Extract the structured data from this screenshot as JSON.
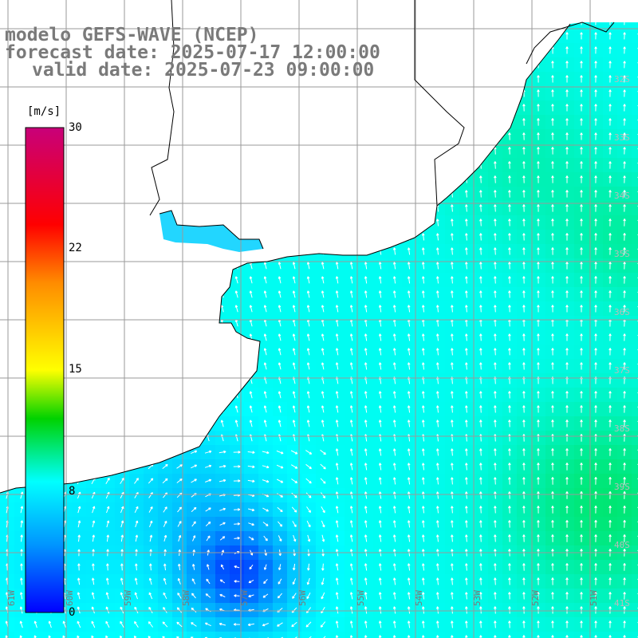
{
  "titles": {
    "line1": "modelo GEFS-WAVE (NCEP)",
    "line2": "forecast date: 2025-07-17 12:00:00",
    "line3": "valid date: 2025-07-23 09:00:00"
  },
  "colorbar": {
    "unit": "[m/s]",
    "min": 0,
    "max": 30,
    "ticks": [
      "30",
      "22",
      "15",
      "8",
      "0"
    ],
    "tick_values": [
      30,
      22,
      15,
      8,
      0
    ],
    "colors": [
      "#0000ff",
      "#00c8ff",
      "#00ffff",
      "#00d200",
      "#ffff00",
      "#ff8c00",
      "#ff0000",
      "#c8007a"
    ]
  },
  "map": {
    "field": "wind speed",
    "land_color": "#ffffff",
    "grid_color": "#a0a0a0",
    "lon_labels": [
      "61W",
      "60W",
      "59W",
      "58W",
      "57W",
      "56W",
      "55W",
      "54W",
      "53W",
      "52W",
      "51W"
    ],
    "lat_labels": [
      "32S",
      "33S",
      "34S",
      "35S",
      "36S",
      "37S",
      "38S",
      "39S",
      "40S",
      "41S"
    ]
  }
}
